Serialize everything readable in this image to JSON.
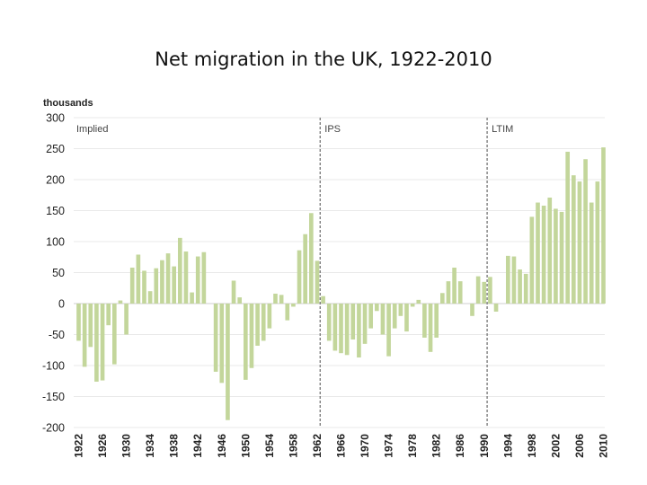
{
  "chart_data": {
    "type": "bar",
    "title": "Net migration in the UK, 1922-2010",
    "ylabel": "thousands",
    "xlabel": "",
    "ylim": [
      -200,
      300
    ],
    "yticks": [
      300,
      250,
      200,
      150,
      100,
      50,
      0,
      -50,
      -100,
      -150,
      -200
    ],
    "grid": true,
    "bar_color": "#c3d69b",
    "divider_color": "#777777",
    "x_tick_labels": [
      "1922",
      "1926",
      "1930",
      "1934",
      "1938",
      "1942",
      "1946",
      "1950",
      "1954",
      "1958",
      "1962",
      "1966",
      "1970",
      "1974",
      "1978",
      "1982",
      "1986",
      "1990",
      "1994",
      "1998",
      "2002",
      "2006",
      "2010"
    ],
    "regions": [
      {
        "label": "Implied",
        "start_year": 1922
      },
      {
        "label": "IPS",
        "start_year": 1963
      },
      {
        "label": "LTIM",
        "start_year": 1991
      }
    ],
    "dividers": [
      1962.5,
      1990.5
    ],
    "years": [
      1922,
      1923,
      1924,
      1925,
      1926,
      1927,
      1928,
      1929,
      1930,
      1931,
      1932,
      1933,
      1934,
      1935,
      1936,
      1937,
      1938,
      1939,
      1940,
      1941,
      1942,
      1943,
      1944,
      1945,
      1946,
      1947,
      1948,
      1949,
      1950,
      1951,
      1952,
      1953,
      1954,
      1955,
      1956,
      1957,
      1958,
      1959,
      1960,
      1961,
      1962,
      1963,
      1964,
      1965,
      1966,
      1967,
      1968,
      1969,
      1970,
      1971,
      1972,
      1973,
      1974,
      1975,
      1976,
      1977,
      1978,
      1979,
      1980,
      1981,
      1982,
      1983,
      1984,
      1985,
      1986,
      1987,
      1988,
      1989,
      1990,
      1991,
      1992,
      1993,
      1994,
      1995,
      1996,
      1997,
      1998,
      1999,
      2000,
      2001,
      2002,
      2003,
      2004,
      2005,
      2006,
      2007,
      2008,
      2009,
      2010
    ],
    "values": [
      -60,
      -102,
      -70,
      -126,
      -124,
      -35,
      -98,
      5,
      -50,
      58,
      79,
      53,
      20,
      57,
      70,
      81,
      60,
      106,
      84,
      18,
      76,
      83,
      null,
      -110,
      -128,
      -188,
      37,
      10,
      -123,
      -104,
      -68,
      -60,
      -40,
      16,
      14,
      -27,
      -5,
      86,
      112,
      146,
      69,
      12,
      -60,
      -76,
      -80,
      -83,
      -58,
      -87,
      -65,
      -40,
      -12,
      -50,
      -85,
      -40,
      -20,
      -45,
      -5,
      6,
      -55,
      -78,
      -55,
      17,
      36,
      58,
      36,
      null,
      -20,
      44,
      35,
      43,
      -13,
      null,
      77,
      76,
      55,
      48,
      140,
      163,
      158,
      171,
      153,
      148,
      245,
      207,
      197,
      233,
      163,
      197,
      252
    ]
  }
}
